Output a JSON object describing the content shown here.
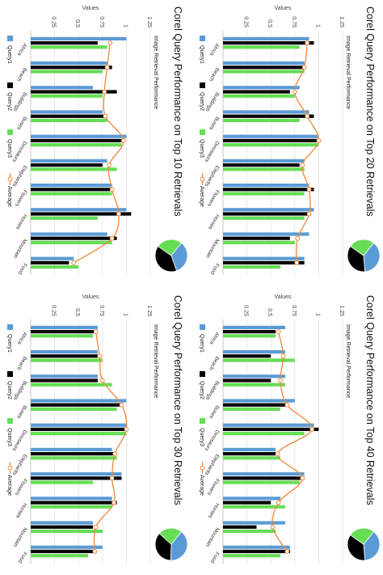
{
  "legend_labels": [
    "Query1",
    "Query2",
    "Query3",
    "Average"
  ],
  "colors": {
    "query1": "#5b9bd5",
    "query2": "#000000",
    "query3": "#66dd55",
    "average": "#f0883a",
    "pie_q1": "#5b9bd5",
    "pie_q2": "#000000",
    "pie_q3": "#66dd55"
  },
  "chart_data": [
    {
      "type": "bar",
      "title": "Corel Query Performance on Top 10 Retrievals",
      "subtitle": "Image Retrieval Performance",
      "ylabel": "Values",
      "ylim": [
        0,
        1.25
      ],
      "yticks": [
        "0.25",
        "0.5",
        "0.75",
        "1",
        "1.25"
      ],
      "categories": [
        "Africa",
        "Beach",
        "Buildings",
        "Buses",
        "Dinosaurs",
        "Elephants",
        "Flowers",
        "Horses",
        "Mountain",
        "Food"
      ],
      "series": [
        {
          "name": "Query1",
          "values": [
            1.0,
            0.8,
            0.65,
            0.75,
            1.0,
            0.8,
            0.85,
            1.0,
            0.8,
            0.45
          ]
        },
        {
          "name": "Query2",
          "values": [
            0.7,
            0.85,
            0.9,
            0.8,
            0.95,
            0.75,
            0.85,
            1.05,
            0.9,
            0.4
          ]
        },
        {
          "name": "Query3",
          "values": [
            0.8,
            0.75,
            0.75,
            0.8,
            0.95,
            0.9,
            0.85,
            0.7,
            0.85,
            0.5
          ]
        },
        {
          "name": "Average",
          "values": [
            0.83,
            0.8,
            0.77,
            0.78,
            0.97,
            0.82,
            0.85,
            0.92,
            0.85,
            0.45
          ]
        }
      ],
      "pie": [
        0.34,
        0.4,
        0.26
      ]
    },
    {
      "type": "bar",
      "title": "Corel Query Performance on Top 20 Retrievals",
      "subtitle": "Image Retrieval Performance",
      "ylabel": "Values",
      "ylim": [
        0,
        1.25
      ],
      "yticks": [
        "0.25",
        "0.5",
        "0.75",
        "1",
        "1.25"
      ],
      "categories": [
        "Africa",
        "Beach",
        "Buildings",
        "Buses",
        "Dinosaurs",
        "Elephants",
        "Flowers",
        "Horses",
        "Mountain",
        "Food"
      ],
      "series": [
        {
          "name": "Query1",
          "values": [
            0.9,
            0.85,
            0.8,
            0.9,
            1.0,
            0.85,
            0.9,
            0.95,
            0.9,
            0.85
          ]
        },
        {
          "name": "Query2",
          "values": [
            0.95,
            0.85,
            0.7,
            0.95,
            1.0,
            0.8,
            0.95,
            0.9,
            0.7,
            0.85
          ]
        },
        {
          "name": "Query3",
          "values": [
            0.8,
            0.85,
            0.75,
            0.8,
            1.0,
            0.85,
            0.85,
            0.85,
            0.75,
            0.6
          ]
        },
        {
          "name": "Average",
          "values": [
            0.88,
            0.85,
            0.75,
            0.88,
            1.0,
            0.83,
            0.9,
            0.9,
            0.78,
            0.77
          ]
        }
      ],
      "pie": [
        0.38,
        0.36,
        0.26
      ]
    },
    {
      "type": "bar",
      "title": "Corel Query Performance on Top 30 Retrievals",
      "subtitle": "Image Retrieval Performance",
      "ylabel": "Values",
      "ylim": [
        0,
        1.25
      ],
      "yticks": [
        "0.25",
        "0.5",
        "0.75",
        "1",
        "1.25"
      ],
      "categories": [
        "Africa",
        "Beach",
        "Buildings",
        "Buses",
        "Dinosaurs",
        "Elephants",
        "Flowers",
        "Horses",
        "Mountain",
        "Food"
      ],
      "series": [
        {
          "name": "Query1",
          "values": [
            0.7,
            0.7,
            0.7,
            1.0,
            1.0,
            0.85,
            0.95,
            0.85,
            0.65,
            0.75
          ]
        },
        {
          "name": "Query2",
          "values": [
            0.7,
            0.7,
            0.7,
            0.95,
            1.0,
            0.9,
            0.95,
            0.9,
            0.65,
            0.65
          ]
        },
        {
          "name": "Query3",
          "values": [
            0.65,
            0.75,
            0.85,
            0.9,
            1.0,
            0.9,
            0.65,
            0.85,
            0.75,
            0.6
          ]
        },
        {
          "name": "Average",
          "values": [
            0.68,
            0.72,
            0.75,
            0.95,
            1.0,
            0.88,
            0.85,
            0.87,
            0.68,
            0.67
          ]
        }
      ],
      "pie": [
        0.4,
        0.36,
        0.24
      ]
    },
    {
      "type": "bar",
      "title": "Corel Query Performance on Top 40 Retrievals",
      "subtitle": "Image Retrieval Performance",
      "ylabel": "Values",
      "ylim": [
        0,
        1.25
      ],
      "yticks": [
        "0.25",
        "0.5",
        "0.75",
        "1",
        "1.25"
      ],
      "categories": [
        "Africa",
        "Beach",
        "Buildings",
        "Buses",
        "Dinosaurs",
        "Elephants",
        "Flowers",
        "Horses",
        "Mountain",
        "Food"
      ],
      "series": [
        {
          "name": "Query1",
          "values": [
            0.65,
            0.65,
            0.65,
            0.75,
            0.95,
            0.55,
            0.85,
            0.6,
            0.65,
            0.7
          ]
        },
        {
          "name": "Query2",
          "values": [
            0.55,
            0.5,
            0.5,
            0.65,
            1.0,
            0.55,
            0.85,
            0.5,
            0.35,
            0.7
          ]
        },
        {
          "name": "Query3",
          "values": [
            0.55,
            0.75,
            0.65,
            0.6,
            0.85,
            0.6,
            0.8,
            0.65,
            0.55,
            0.6
          ]
        },
        {
          "name": "Average",
          "values": [
            0.58,
            0.63,
            0.6,
            0.67,
            0.93,
            0.57,
            0.83,
            0.58,
            0.52,
            0.67
          ]
        }
      ],
      "pie": [
        0.38,
        0.36,
        0.26
      ]
    }
  ]
}
